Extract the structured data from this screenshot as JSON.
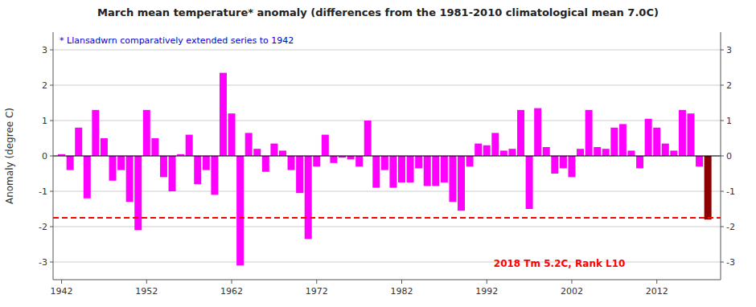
{
  "chart_data": {
    "type": "bar",
    "title": "March mean temperature* anomaly (differences from the 1981-2010 climatological mean 7.0C)",
    "ylabel": "Anomaly (degree C)",
    "annotations": [
      {
        "text": "* Llansadwrn comparatively extended series to 1942",
        "color": "#0000CD"
      },
      {
        "text": "2018 Tm 5.2C, Rank L10",
        "color": "#FF0000"
      }
    ],
    "x": [
      1942,
      1943,
      1944,
      1945,
      1946,
      1947,
      1948,
      1949,
      1950,
      1951,
      1952,
      1953,
      1954,
      1955,
      1956,
      1957,
      1958,
      1959,
      1960,
      1961,
      1962,
      1963,
      1964,
      1965,
      1966,
      1967,
      1968,
      1969,
      1970,
      1971,
      1972,
      1973,
      1974,
      1975,
      1976,
      1977,
      1978,
      1979,
      1980,
      1981,
      1982,
      1983,
      1984,
      1985,
      1986,
      1987,
      1988,
      1989,
      1990,
      1991,
      1992,
      1993,
      1994,
      1995,
      1996,
      1997,
      1998,
      1999,
      2000,
      2001,
      2002,
      2003,
      2004,
      2005,
      2006,
      2007,
      2008,
      2009,
      2010,
      2011,
      2012,
      2013,
      2014,
      2015,
      2016,
      2017,
      2018
    ],
    "values": [
      0.05,
      -0.4,
      0.8,
      -1.2,
      1.3,
      0.5,
      -0.7,
      -0.4,
      -1.3,
      -2.1,
      1.3,
      0.5,
      -0.6,
      -1.0,
      0.05,
      0.6,
      -0.8,
      -0.4,
      -1.1,
      2.35,
      1.2,
      -3.1,
      0.65,
      0.2,
      -0.45,
      0.35,
      0.15,
      -0.4,
      -1.05,
      -2.35,
      -0.3,
      0.6,
      -0.2,
      -0.05,
      -0.1,
      -0.3,
      1.0,
      -0.9,
      -0.4,
      -0.9,
      -0.75,
      -0.75,
      -0.35,
      -0.85,
      -0.85,
      -0.75,
      -1.3,
      -1.55,
      -0.3,
      0.35,
      0.3,
      0.65,
      0.15,
      0.2,
      1.3,
      -1.5,
      1.35,
      0.25,
      -0.5,
      -0.35,
      -0.6,
      0.2,
      1.3,
      0.25,
      0.2,
      0.8,
      0.9,
      0.15,
      -0.35,
      1.05,
      0.8,
      0.35,
      0.15,
      1.3,
      1.2,
      -0.3,
      -1.8
    ],
    "colors": [
      "#FF00FF",
      "#FF00FF",
      "#FF00FF",
      "#FF00FF",
      "#FF00FF",
      "#FF00FF",
      "#FF00FF",
      "#FF00FF",
      "#FF00FF",
      "#FF00FF",
      "#FF00FF",
      "#FF00FF",
      "#FF00FF",
      "#FF00FF",
      "#FF00FF",
      "#FF00FF",
      "#FF00FF",
      "#FF00FF",
      "#FF00FF",
      "#FF00FF",
      "#FF00FF",
      "#FF00FF",
      "#FF00FF",
      "#FF00FF",
      "#FF00FF",
      "#FF00FF",
      "#FF00FF",
      "#FF00FF",
      "#FF00FF",
      "#FF00FF",
      "#FF00FF",
      "#FF00FF",
      "#FF00FF",
      "#FF00FF",
      "#FF00FF",
      "#FF00FF",
      "#FF00FF",
      "#FF00FF",
      "#FF00FF",
      "#FF00FF",
      "#FF00FF",
      "#FF00FF",
      "#FF00FF",
      "#FF00FF",
      "#FF00FF",
      "#FF00FF",
      "#FF00FF",
      "#FF00FF",
      "#FF00FF",
      "#FF00FF",
      "#FF00FF",
      "#FF00FF",
      "#FF00FF",
      "#FF00FF",
      "#FF00FF",
      "#FF00FF",
      "#FF00FF",
      "#FF00FF",
      "#FF00FF",
      "#FF00FF",
      "#FF00FF",
      "#FF00FF",
      "#FF00FF",
      "#FF00FF",
      "#FF00FF",
      "#FF00FF",
      "#FF00FF",
      "#FF00FF",
      "#FF00FF",
      "#FF00FF",
      "#FF00FF",
      "#FF00FF",
      "#FF00FF",
      "#FF00FF",
      "#FF00FF",
      "#FF00FF",
      "#8B0000"
    ],
    "hlines": [
      {
        "y": -1.75,
        "color": "#FF0000",
        "line_style": "dashed"
      }
    ],
    "xlim": [
      1941,
      2019.5
    ],
    "xticks": [
      1942,
      1952,
      1962,
      1972,
      1982,
      1992,
      2002,
      2012
    ],
    "ylim": [
      -3.5,
      3.5
    ],
    "yticks": [
      -3,
      -2,
      -1,
      0,
      1,
      2,
      3
    ],
    "y2lim": [
      -3.5,
      3.5
    ],
    "y2ticks": [
      -3,
      -2,
      -1,
      0,
      1,
      2,
      3
    ],
    "grid": true
  }
}
